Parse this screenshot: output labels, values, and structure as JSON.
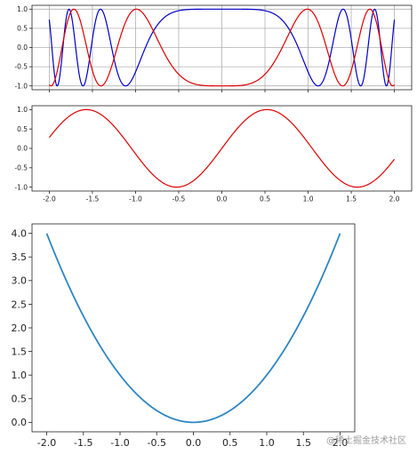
{
  "chart_data": [
    {
      "type": "line",
      "title": "",
      "xlabel": "",
      "ylabel": "",
      "xlim": [
        -2.2,
        2.2
      ],
      "ylim": [
        -1.1,
        1.1
      ],
      "grid": true,
      "x_ticks": [],
      "y_ticks": [
        "1.0",
        "0.5",
        "0.0",
        "-0.5",
        "-1.0"
      ],
      "series": [
        {
          "function": "cos(3*pi/2*x^3)",
          "color": "#0000cc",
          "x": [
            -2.0,
            -1.5,
            -1.0,
            -0.5,
            0.0,
            0.5,
            1.0,
            1.5,
            2.0
          ],
          "values": [
            0.41,
            -0.93,
            0.0,
            0.83,
            1.0,
            0.83,
            0.0,
            -0.93,
            0.41
          ]
        },
        {
          "function": "sin(2*pi/1.6*x^2...)",
          "color": "#dd0000",
          "x": [
            -2.0,
            -1.6,
            -1.1,
            -0.7,
            0.0,
            0.7,
            1.1,
            1.6,
            2.0
          ],
          "values": [
            -0.5,
            0.9,
            -0.9,
            1.0,
            0.0,
            1.0,
            -0.9,
            0.9,
            -0.5
          ]
        }
      ]
    },
    {
      "type": "line",
      "title": "",
      "xlabel": "",
      "ylabel": "",
      "xlim": [
        -2.2,
        2.2
      ],
      "ylim": [
        -1.1,
        1.1
      ],
      "grid": false,
      "x_ticks": [
        "-2.0",
        "-1.5",
        "-1.0",
        "-0.5",
        "0.0",
        "0.5",
        "1.0",
        "1.5",
        "2.0"
      ],
      "y_ticks": [
        "1.0",
        "0.5",
        "0.0",
        "-0.5",
        "-1.0"
      ],
      "series": [
        {
          "color": "#dd0000",
          "x": [
            -2.0,
            -1.5,
            -1.0,
            -0.5,
            0.0,
            0.5,
            1.0,
            1.5,
            2.0
          ],
          "values": [
            0.29,
            0.99,
            0.5,
            -1.0,
            0.0,
            1.0,
            -0.5,
            -0.99,
            -0.29
          ]
        }
      ]
    },
    {
      "type": "line",
      "title": "",
      "xlabel": "",
      "ylabel": "",
      "xlim": [
        -2.2,
        2.2
      ],
      "ylim": [
        -0.2,
        4.2
      ],
      "grid": false,
      "x_ticks": [
        "-2.0",
        "-1.5",
        "-1.0",
        "-0.5",
        "0.0",
        "0.5",
        "1.0",
        "1.5",
        "2.0"
      ],
      "y_ticks": [
        "4.0",
        "3.5",
        "3.0",
        "2.5",
        "2.0",
        "1.5",
        "1.0",
        "0.5",
        "0.0"
      ],
      "series": [
        {
          "color": "#2e86c1",
          "x": [
            -2.0,
            -1.5,
            -1.0,
            -0.5,
            0.0,
            0.5,
            1.0,
            1.5,
            2.0
          ],
          "values": [
            4.0,
            2.25,
            1.0,
            0.25,
            0.0,
            0.25,
            1.0,
            2.25,
            4.0
          ]
        }
      ]
    }
  ],
  "watermark": "@稀土掘金技术社区"
}
